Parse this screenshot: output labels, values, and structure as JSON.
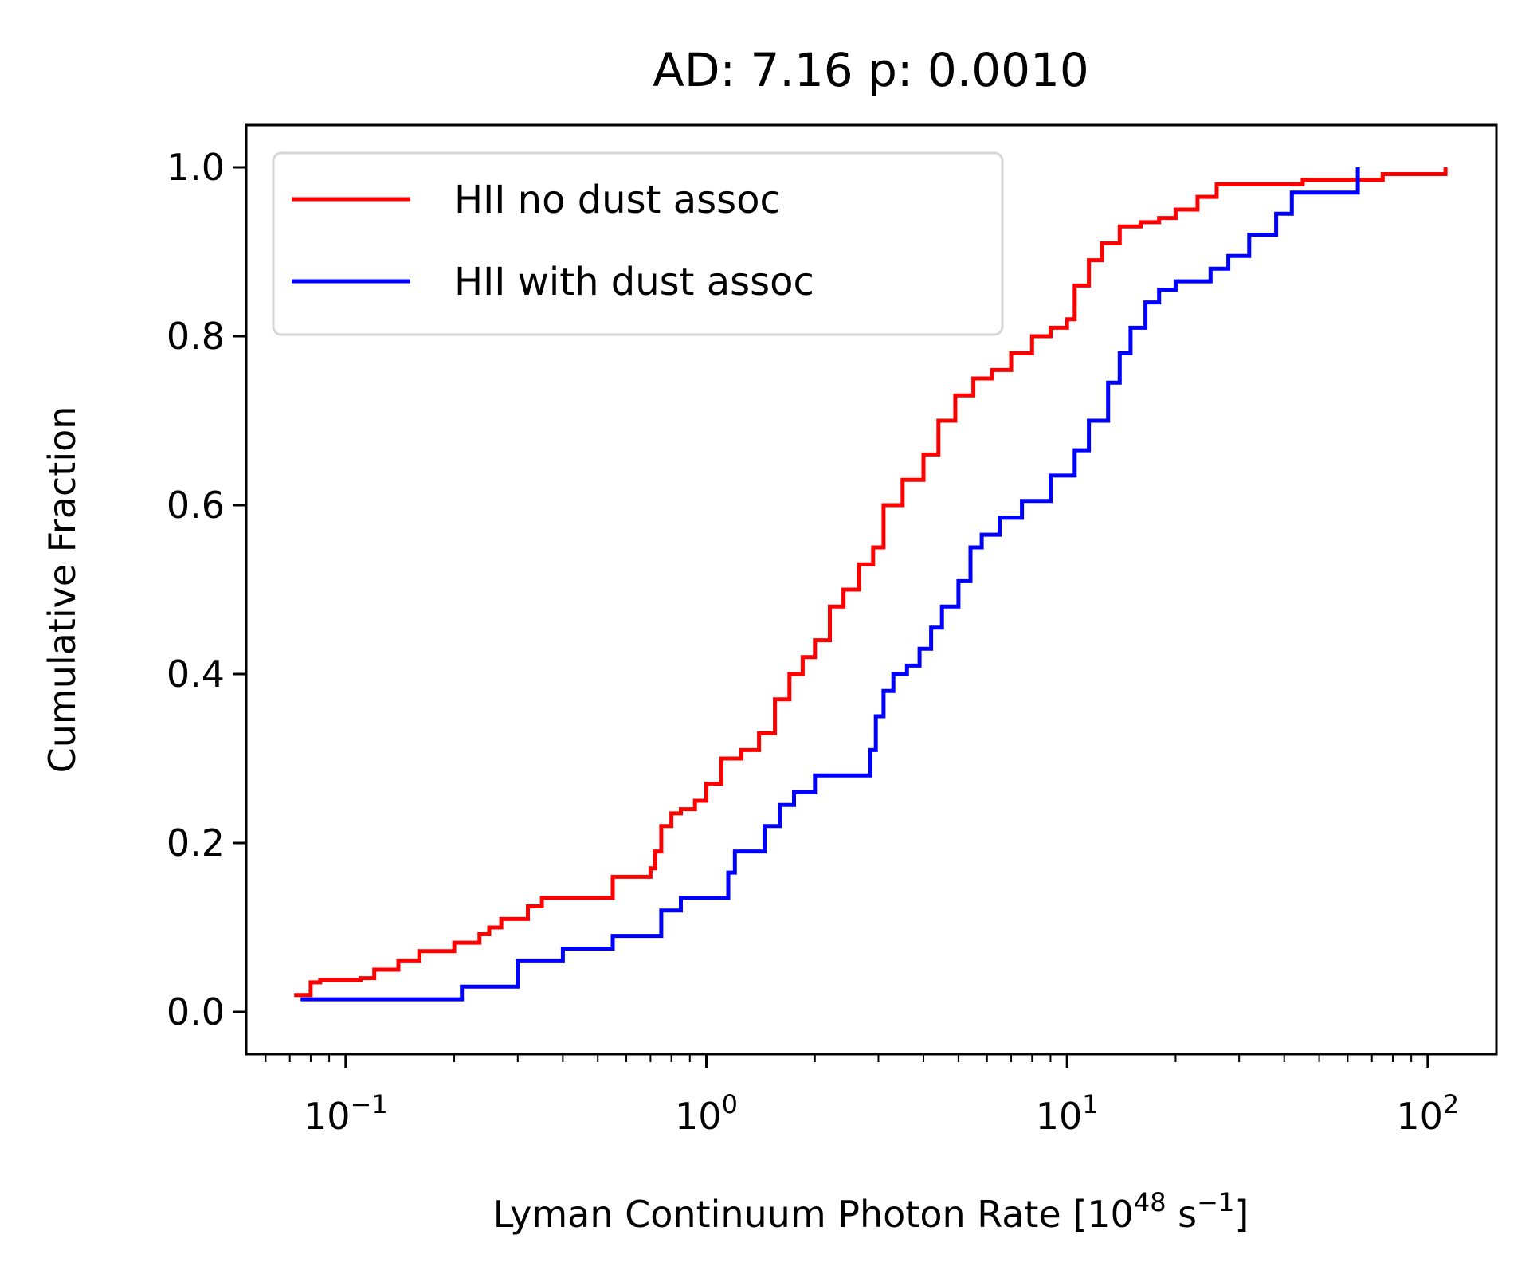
{
  "chart_data": {
    "type": "line",
    "step": true,
    "title": "AD: 7.16 p: 0.0010",
    "xlabel": "Lyman Continuum Photon Rate [10",
    "xlabel_exp": "48",
    "xlabel_mid": " s",
    "xlabel_exp2": "−1",
    "xlabel_end": "]",
    "ylabel": "Cumulative Fraction",
    "xscale": "log",
    "xlim": [
      0.053,
      155
    ],
    "ylim": [
      -0.05,
      1.05
    ],
    "xticks": [
      {
        "base": "10",
        "exp": "−1",
        "value": 0.1
      },
      {
        "base": "10",
        "exp": "0",
        "value": 1
      },
      {
        "base": "10",
        "exp": "1",
        "value": 10
      },
      {
        "base": "10",
        "exp": "2",
        "value": 100
      }
    ],
    "yticks": [
      {
        "label": "0.0",
        "value": 0.0
      },
      {
        "label": "0.2",
        "value": 0.2
      },
      {
        "label": "0.4",
        "value": 0.4
      },
      {
        "label": "0.6",
        "value": 0.6
      },
      {
        "label": "0.8",
        "value": 0.8
      },
      {
        "label": "1.0",
        "value": 1.0
      }
    ],
    "grid": false,
    "legend": "upper-left",
    "series": [
      {
        "name": "HII no dust assoc",
        "color": "#ff0000",
        "x": [
          0.072,
          0.08,
          0.085,
          0.11,
          0.12,
          0.14,
          0.16,
          0.2,
          0.235,
          0.25,
          0.27,
          0.32,
          0.35,
          0.55,
          0.7,
          0.72,
          0.75,
          0.8,
          0.85,
          0.93,
          1.0,
          1.1,
          1.25,
          1.4,
          1.55,
          1.7,
          1.85,
          2.0,
          2.2,
          2.4,
          2.65,
          2.9,
          3.1,
          3.5,
          4.0,
          4.4,
          4.9,
          5.5,
          6.2,
          7.0,
          8.0,
          9.0,
          10.0,
          10.5,
          11.5,
          12.5,
          14.0,
          16.0,
          18.0,
          20.0,
          23.0,
          26.0,
          45.0,
          75.0,
          112.0
        ],
        "y": [
          0.02,
          0.035,
          0.038,
          0.04,
          0.05,
          0.06,
          0.072,
          0.082,
          0.092,
          0.1,
          0.11,
          0.125,
          0.135,
          0.16,
          0.17,
          0.19,
          0.22,
          0.235,
          0.24,
          0.25,
          0.27,
          0.3,
          0.31,
          0.33,
          0.37,
          0.4,
          0.42,
          0.44,
          0.48,
          0.5,
          0.53,
          0.55,
          0.6,
          0.63,
          0.66,
          0.7,
          0.73,
          0.75,
          0.76,
          0.78,
          0.8,
          0.81,
          0.82,
          0.86,
          0.89,
          0.91,
          0.93,
          0.935,
          0.94,
          0.95,
          0.965,
          0.98,
          0.985,
          0.992,
          1.0
        ]
      },
      {
        "name": "HII with dust assoc",
        "color": "#0000ff",
        "x": [
          0.075,
          0.21,
          0.3,
          0.4,
          0.55,
          0.75,
          0.85,
          1.15,
          1.2,
          1.45,
          1.6,
          1.75,
          2.0,
          2.85,
          2.95,
          3.1,
          3.3,
          3.6,
          3.9,
          4.2,
          4.5,
          5.0,
          5.4,
          5.8,
          6.5,
          7.5,
          9.0,
          10.5,
          11.5,
          13.0,
          14.0,
          15.0,
          16.5,
          18.0,
          20.0,
          25.0,
          28.0,
          32.0,
          38.0,
          42.0,
          64.0
        ],
        "y": [
          0.015,
          0.03,
          0.06,
          0.075,
          0.09,
          0.12,
          0.135,
          0.165,
          0.19,
          0.22,
          0.245,
          0.26,
          0.28,
          0.31,
          0.35,
          0.38,
          0.4,
          0.41,
          0.43,
          0.455,
          0.48,
          0.51,
          0.55,
          0.565,
          0.585,
          0.605,
          0.635,
          0.665,
          0.7,
          0.745,
          0.78,
          0.81,
          0.84,
          0.855,
          0.865,
          0.88,
          0.895,
          0.92,
          0.945,
          0.97,
          1.0
        ]
      }
    ]
  }
}
